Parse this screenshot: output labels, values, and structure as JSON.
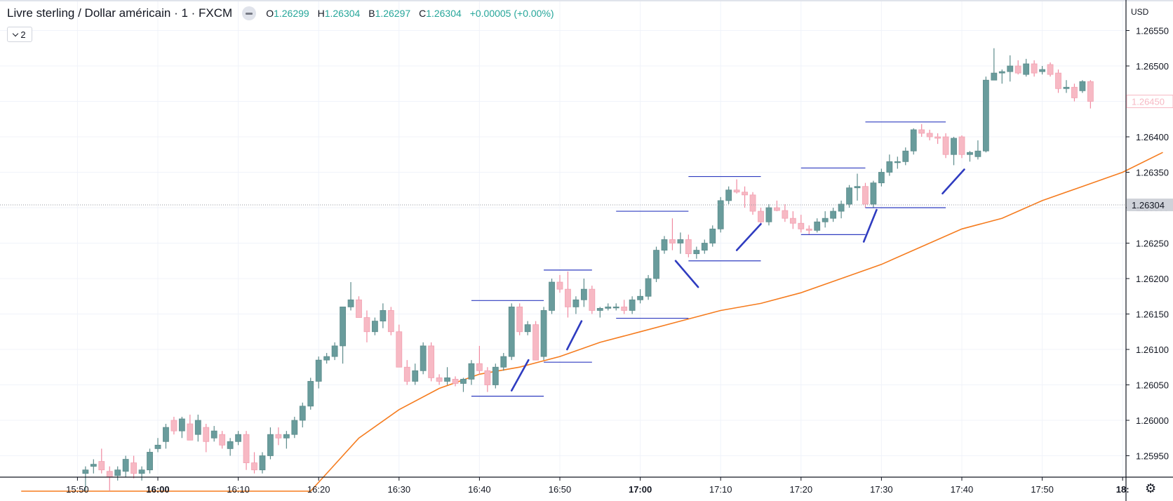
{
  "header": {
    "title": "Livre sterling / Dollar américain · 1 · FXCM",
    "open_key": "O",
    "open": "1.26299",
    "high_key": "H",
    "high": "1.26304",
    "low_key": "B",
    "low": "1.26297",
    "close_key": "C",
    "close": "1.26304",
    "change": "+0.00005 (+0.00%)"
  },
  "indicators_toggle": {
    "count": "2"
  },
  "price_axis": {
    "currency": "USD"
  },
  "settings": {
    "icon": "gear-icon"
  },
  "colors": {
    "up": "#699c9c",
    "down": "#f7b9c4",
    "ma": "#f57c1f",
    "drawings": "#2f3cc0",
    "current_price_label": "#cfd2d9",
    "last_price_label": "#f7b9c4"
  },
  "chart_data": {
    "type": "candlestick",
    "symbol": "GBPUSD",
    "timeframe": "1",
    "y_ticks": [
      "1.26550",
      "1.26500",
      "1.26450",
      "1.26400",
      "1.26350",
      "1.26300",
      "1.26250",
      "1.26200",
      "1.26150",
      "1.26100",
      "1.26050",
      "1.26000",
      "1.25950"
    ],
    "y_tick_values": [
      1.2655,
      1.265,
      1.2645,
      1.264,
      1.2635,
      1.263,
      1.2625,
      1.262,
      1.2615,
      1.261,
      1.2605,
      1.26,
      1.2595
    ],
    "x_ticks": [
      {
        "label": "15:50",
        "minute": -10,
        "bold": false
      },
      {
        "label": "16:00",
        "minute": 0,
        "bold": true
      },
      {
        "label": "16:10",
        "minute": 10,
        "bold": false
      },
      {
        "label": "16:20",
        "minute": 20,
        "bold": false
      },
      {
        "label": "16:30",
        "minute": 30,
        "bold": false
      },
      {
        "label": "16:40",
        "minute": 40,
        "bold": false
      },
      {
        "label": "16:50",
        "minute": 50,
        "bold": false
      },
      {
        "label": "17:00",
        "minute": 60,
        "bold": true
      },
      {
        "label": "17:10",
        "minute": 70,
        "bold": false
      },
      {
        "label": "17:20",
        "minute": 80,
        "bold": false
      },
      {
        "label": "17:30",
        "minute": 90,
        "bold": false
      },
      {
        "label": "17:40",
        "minute": 100,
        "bold": false
      },
      {
        "label": "17:50",
        "minute": 110,
        "bold": false
      },
      {
        "label": "18:",
        "minute": 120,
        "bold": true
      }
    ],
    "current_price": "1.26304",
    "current_price_value": 1.26304,
    "last_price_label": "1.26450",
    "last_price_value": 1.2645,
    "candles_note": "o,h,l,c per minute from 15:51",
    "candles": [
      [
        1.25925,
        1.25935,
        1.259,
        1.2593
      ],
      [
        1.25935,
        1.25945,
        1.25925,
        1.25938
      ],
      [
        1.25942,
        1.2596,
        1.25925,
        1.2593
      ],
      [
        1.25928,
        1.25935,
        1.259,
        1.2592
      ],
      [
        1.25922,
        1.25935,
        1.25915,
        1.2593
      ],
      [
        1.25928,
        1.2595,
        1.2592,
        1.25945
      ],
      [
        1.2594,
        1.2595,
        1.25918,
        1.25925
      ],
      [
        1.25925,
        1.25935,
        1.25915,
        1.2593
      ],
      [
        1.2593,
        1.2596,
        1.25925,
        1.25955
      ],
      [
        1.2596,
        1.25975,
        1.25955,
        1.25965
      ],
      [
        1.2597,
        1.25995,
        1.2596,
        1.2599
      ],
      [
        1.26,
        1.26005,
        1.2598,
        1.25985
      ],
      [
        1.25985,
        1.26005,
        1.25975,
        1.26002
      ],
      [
        1.25995,
        1.26008,
        1.25975,
        1.25972
      ],
      [
        1.2598,
        1.26008,
        1.2597,
        1.26
      ],
      [
        1.2599,
        1.25995,
        1.25955,
        1.2597
      ],
      [
        1.25975,
        1.25992,
        1.2597,
        1.25985
      ],
      [
        1.2598,
        1.25985,
        1.2596,
        1.25965
      ],
      [
        1.2596,
        1.25975,
        1.2595,
        1.2597
      ],
      [
        1.2597,
        1.25985,
        1.25965,
        1.2598
      ],
      [
        1.2598,
        1.25985,
        1.2593,
        1.2594
      ],
      [
        1.2594,
        1.25955,
        1.25925,
        1.2593
      ],
      [
        1.2593,
        1.25955,
        1.25925,
        1.2595
      ],
      [
        1.2595,
        1.2599,
        1.25945,
        1.2598
      ],
      [
        1.2598,
        1.2599,
        1.25965,
        1.25975
      ],
      [
        1.25975,
        1.25985,
        1.2596,
        1.2598
      ],
      [
        1.2598,
        1.26005,
        1.25975,
        1.26
      ],
      [
        1.26,
        1.26025,
        1.2599,
        1.2602
      ],
      [
        1.2602,
        1.2606,
        1.26015,
        1.26055
      ],
      [
        1.26055,
        1.2609,
        1.26045,
        1.26085
      ],
      [
        1.26085,
        1.26095,
        1.2608,
        1.2609
      ],
      [
        1.2609,
        1.2611,
        1.26085,
        1.26105
      ],
      [
        1.26105,
        1.2616,
        1.2608,
        1.2616
      ],
      [
        1.2616,
        1.26195,
        1.26155,
        1.2617
      ],
      [
        1.2617,
        1.26175,
        1.26145,
        1.26145
      ],
      [
        1.26145,
        1.26155,
        1.2611,
        1.26125
      ],
      [
        1.26125,
        1.26145,
        1.2612,
        1.2614
      ],
      [
        1.2614,
        1.26165,
        1.2613,
        1.26155
      ],
      [
        1.26155,
        1.2616,
        1.2612,
        1.26125
      ],
      [
        1.26125,
        1.26135,
        1.26075,
        1.26075
      ],
      [
        1.26075,
        1.26085,
        1.2605,
        1.26055
      ],
      [
        1.26055,
        1.2608,
        1.2605,
        1.2607
      ],
      [
        1.2607,
        1.2611,
        1.26065,
        1.26105
      ],
      [
        1.26105,
        1.2611,
        1.26055,
        1.2606
      ],
      [
        1.2606,
        1.26065,
        1.2605,
        1.26055
      ],
      [
        1.26055,
        1.26075,
        1.2605,
        1.2606
      ],
      [
        1.26058,
        1.26062,
        1.26048,
        1.26052
      ],
      [
        1.26052,
        1.2606,
        1.2604,
        1.26058
      ],
      [
        1.26058,
        1.26085,
        1.2605,
        1.2608
      ],
      [
        1.2608,
        1.26105,
        1.26065,
        1.2607
      ],
      [
        1.2607,
        1.26075,
        1.2604,
        1.2605
      ],
      [
        1.2605,
        1.2608,
        1.26045,
        1.26075
      ],
      [
        1.26075,
        1.26095,
        1.2607,
        1.2609
      ],
      [
        1.2609,
        1.26165,
        1.26085,
        1.2616
      ],
      [
        1.2616,
        1.26165,
        1.2612,
        1.26125
      ],
      [
        1.26125,
        1.2614,
        1.2612,
        1.26135
      ],
      [
        1.26135,
        1.2614,
        1.26085,
        1.26085
      ],
      [
        1.2609,
        1.2616,
        1.26085,
        1.26155
      ],
      [
        1.26155,
        1.262,
        1.2615,
        1.26195
      ],
      [
        1.26195,
        1.26205,
        1.2618,
        1.26185
      ],
      [
        1.26185,
        1.2621,
        1.26145,
        1.2616
      ],
      [
        1.2616,
        1.26175,
        1.2615,
        1.2617
      ],
      [
        1.2617,
        1.262,
        1.2616,
        1.26185
      ],
      [
        1.26185,
        1.2619,
        1.2615,
        1.26155
      ],
      [
        1.26155,
        1.2616,
        1.26145,
        1.26158
      ],
      [
        1.26158,
        1.26165,
        1.26155,
        1.2616
      ],
      [
        1.2616,
        1.26165,
        1.26155,
        1.2616
      ],
      [
        1.2616,
        1.2617,
        1.2615,
        1.26155
      ],
      [
        1.26155,
        1.26175,
        1.2615,
        1.2617
      ],
      [
        1.2617,
        1.26185,
        1.26165,
        1.26175
      ],
      [
        1.26175,
        1.26205,
        1.2617,
        1.262
      ],
      [
        1.262,
        1.26245,
        1.26195,
        1.2624
      ],
      [
        1.2624,
        1.2626,
        1.26235,
        1.26255
      ],
      [
        1.26255,
        1.26285,
        1.2624,
        1.2625
      ],
      [
        1.2625,
        1.26265,
        1.26235,
        1.26255
      ],
      [
        1.26255,
        1.26262,
        1.2623,
        1.26235
      ],
      [
        1.26235,
        1.26245,
        1.26228,
        1.2624
      ],
      [
        1.2624,
        1.26255,
        1.26235,
        1.2625
      ],
      [
        1.2625,
        1.26275,
        1.26245,
        1.2627
      ],
      [
        1.2627,
        1.26315,
        1.26265,
        1.2631
      ],
      [
        1.2631,
        1.2633,
        1.26305,
        1.26325
      ],
      [
        1.26325,
        1.2634,
        1.2632,
        1.26322
      ],
      [
        1.26322,
        1.2633,
        1.263,
        1.26318
      ],
      [
        1.26318,
        1.26322,
        1.2629,
        1.26295
      ],
      [
        1.26295,
        1.263,
        1.26275,
        1.2628
      ],
      [
        1.2628,
        1.26305,
        1.26275,
        1.263
      ],
      [
        1.263,
        1.2631,
        1.26295,
        1.26296
      ],
      [
        1.26296,
        1.26305,
        1.2628,
        1.26285
      ],
      [
        1.26285,
        1.26295,
        1.2627,
        1.26278
      ],
      [
        1.26278,
        1.2629,
        1.26265,
        1.2627
      ],
      [
        1.2627,
        1.26275,
        1.26262,
        1.26268
      ],
      [
        1.26268,
        1.26285,
        1.26265,
        1.2628
      ],
      [
        1.2628,
        1.26295,
        1.26272,
        1.26285
      ],
      [
        1.26285,
        1.263,
        1.2628,
        1.26295
      ],
      [
        1.26295,
        1.2631,
        1.26285,
        1.26305
      ],
      [
        1.26305,
        1.26332,
        1.263,
        1.26328
      ],
      [
        1.26328,
        1.26348,
        1.2631,
        1.2633
      ],
      [
        1.2633,
        1.26335,
        1.263,
        1.26305
      ],
      [
        1.26305,
        1.26338,
        1.263,
        1.26335
      ],
      [
        1.26335,
        1.26355,
        1.2633,
        1.2635
      ],
      [
        1.2635,
        1.26375,
        1.26345,
        1.26365
      ],
      [
        1.26365,
        1.26372,
        1.26355,
        1.26365
      ],
      [
        1.26365,
        1.26385,
        1.2636,
        1.2638
      ],
      [
        1.2638,
        1.26412,
        1.26375,
        1.2641
      ],
      [
        1.2641,
        1.26418,
        1.264,
        1.26405
      ],
      [
        1.26405,
        1.2641,
        1.26395,
        1.264
      ],
      [
        1.264,
        1.26405,
        1.2639,
        1.26398
      ],
      [
        1.264,
        1.26405,
        1.2637,
        1.26375
      ],
      [
        1.26375,
        1.264,
        1.2636,
        1.26398
      ],
      [
        1.264,
        1.26402,
        1.2637,
        1.26375
      ],
      [
        1.26375,
        1.2638,
        1.26365,
        1.26378
      ],
      [
        1.26372,
        1.26395,
        1.26368,
        1.2638
      ],
      [
        1.2638,
        1.26485,
        1.26378,
        1.2648
      ],
      [
        1.2648,
        1.26525,
        1.2648,
        1.2649
      ],
      [
        1.2649,
        1.26495,
        1.26475,
        1.26492
      ],
      [
        1.26492,
        1.26515,
        1.26478,
        1.265
      ],
      [
        1.265,
        1.26508,
        1.26488,
        1.2649
      ],
      [
        1.26488,
        1.2651,
        1.26485,
        1.26503
      ],
      [
        1.26503,
        1.26508,
        1.26485,
        1.2649
      ],
      [
        1.26492,
        1.265,
        1.26488,
        1.26495
      ],
      [
        1.26502,
        1.26505,
        1.26485,
        1.26488
      ],
      [
        1.2649,
        1.26495,
        1.26462,
        1.26468
      ],
      [
        1.26468,
        1.2648,
        1.26462,
        1.2647
      ],
      [
        1.2647,
        1.26475,
        1.2645,
        1.26455
      ],
      [
        1.26465,
        1.2648,
        1.26462,
        1.26478
      ],
      [
        1.26478,
        1.2648,
        1.2644,
        1.2645
      ]
    ],
    "moving_average": {
      "points": [
        [
          -17,
          1.259
        ],
        [
          19,
          1.259
        ],
        [
          25,
          1.25975
        ],
        [
          30,
          1.26015
        ],
        [
          35,
          1.26045
        ],
        [
          40,
          1.26065
        ],
        [
          45,
          1.26075
        ],
        [
          50,
          1.2609
        ],
        [
          55,
          1.2611
        ],
        [
          60,
          1.26125
        ],
        [
          65,
          1.2614
        ],
        [
          70,
          1.26155
        ],
        [
          75,
          1.26165
        ],
        [
          80,
          1.2618
        ],
        [
          85,
          1.262
        ],
        [
          90,
          1.2622
        ],
        [
          95,
          1.26245
        ],
        [
          100,
          1.2627
        ],
        [
          105,
          1.26285
        ],
        [
          110,
          1.2631
        ],
        [
          115,
          1.2633
        ],
        [
          120,
          1.2635
        ],
        [
          125,
          1.26378
        ]
      ]
    },
    "drawings": {
      "hlines": [
        [
          39,
          48,
          1.26034
        ],
        [
          39,
          48,
          1.26169
        ],
        [
          48,
          54,
          1.26082
        ],
        [
          48,
          54,
          1.26212
        ],
        [
          57,
          66,
          1.26295
        ],
        [
          57,
          66,
          1.26144
        ],
        [
          66,
          75,
          1.26344
        ],
        [
          66,
          75,
          1.26225
        ],
        [
          80,
          88,
          1.26356
        ],
        [
          80,
          88,
          1.26262
        ],
        [
          88,
          98,
          1.26421
        ],
        [
          88,
          98,
          1.263
        ]
      ],
      "trendlines": [
        [
          44,
          1.26042,
          46.1,
          1.26085
        ],
        [
          50.9,
          1.261,
          52.7,
          1.2614
        ],
        [
          64.4,
          1.26225,
          67.2,
          1.26188
        ],
        [
          72,
          1.2624,
          75,
          1.26277
        ],
        [
          87.8,
          1.26252,
          89.4,
          1.26297
        ],
        [
          97.6,
          1.2632,
          100.3,
          1.26354
        ]
      ]
    }
  }
}
